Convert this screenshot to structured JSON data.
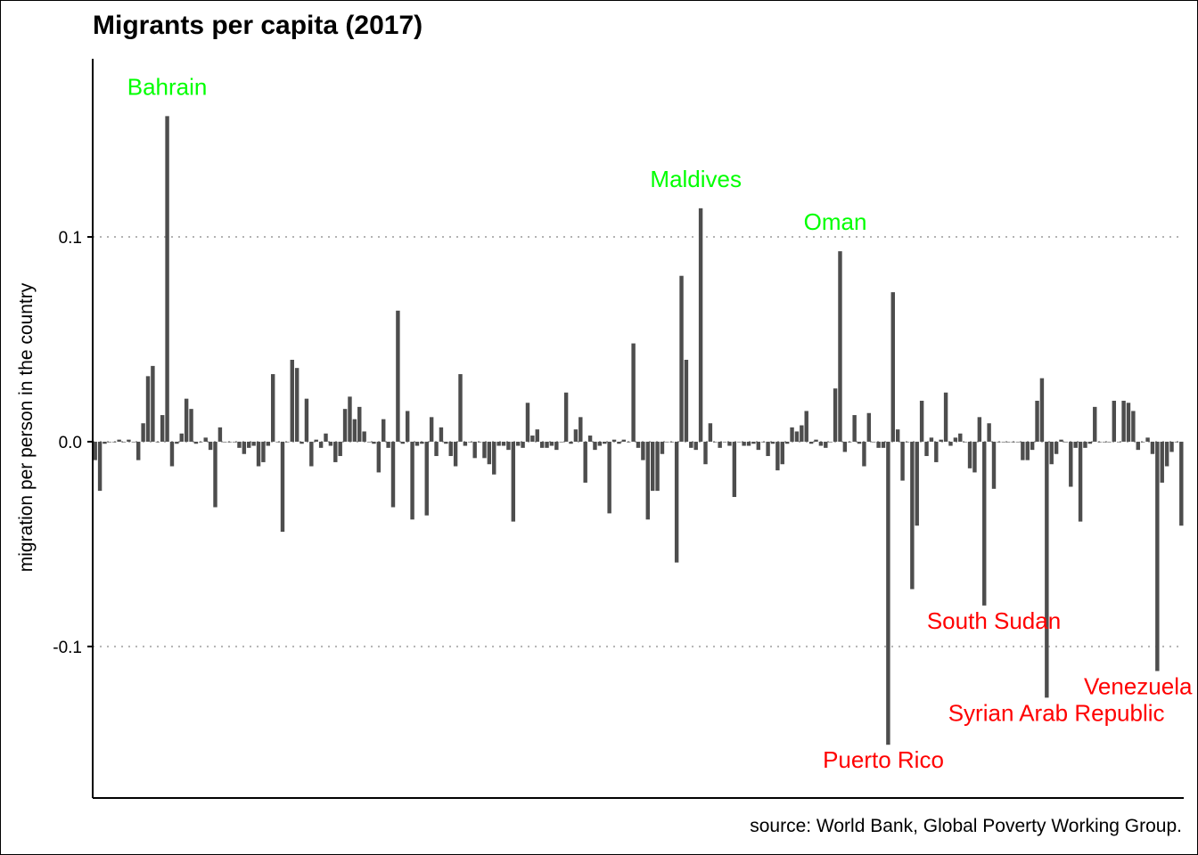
{
  "caption": "source: World Bank, Global Poverty Working Group.",
  "chart_data": {
    "type": "bar",
    "title": "Migrants per capita (2017)",
    "xlabel": "",
    "ylabel": "migration per person in the country",
    "ylim": [
      -0.174,
      0.187
    ],
    "yticks": [
      -0.1,
      0.0,
      0.1
    ],
    "ytick_labels": [
      "-0.1",
      "0.0",
      "0.1"
    ],
    "grid": "horizontal dotted at ticks",
    "bar_color": "#4d4d4d",
    "positive_label_color": "#00ff00",
    "negative_label_color": "#ff0000",
    "categories_shown": "unlabeled country bars",
    "values": [
      -0.009,
      -0.024,
      -0.001,
      0,
      0,
      0.001,
      0,
      0.001,
      0,
      -0.009,
      0.009,
      0.032,
      0.037,
      0,
      0.013,
      0.159,
      -0.012,
      -0.001,
      0.004,
      0.021,
      0.016,
      -0.001,
      0,
      0.002,
      -0.004,
      -0.032,
      0.007,
      0,
      0,
      0,
      -0.003,
      -0.006,
      -0.003,
      -0.002,
      -0.012,
      -0.01,
      -0.002,
      0.033,
      0,
      -0.044,
      0,
      0.04,
      0.036,
      -0.001,
      0.021,
      -0.012,
      0.001,
      -0.003,
      0.004,
      -0.002,
      -0.01,
      -0.007,
      0.016,
      0.022,
      0.011,
      0.017,
      0.005,
      0,
      -0.001,
      -0.015,
      0.011,
      -0.003,
      -0.032,
      0.064,
      -0.001,
      0.015,
      -0.038,
      -0.002,
      -0.001,
      -0.036,
      0.012,
      -0.007,
      0.007,
      -0.001,
      -0.007,
      -0.012,
      0.033,
      -0.002,
      0,
      -0.008,
      0,
      -0.008,
      -0.011,
      -0.016,
      -0.002,
      -0.002,
      -0.004,
      -0.039,
      -0.002,
      -0.003,
      0.019,
      0.003,
      0.006,
      -0.003,
      -0.003,
      -0.002,
      -0.004,
      0,
      0.024,
      -0.001,
      0.006,
      0.012,
      -0.02,
      0.003,
      -0.004,
      -0.002,
      -0.001,
      -0.035,
      0.001,
      -0.001,
      0.001,
      0,
      0.048,
      -0.003,
      -0.009,
      -0.038,
      -0.024,
      -0.024,
      -0.006,
      0,
      0,
      -0.059,
      0.081,
      0.04,
      -0.003,
      -0.004,
      0.114,
      -0.011,
      0.009,
      0,
      -0.003,
      0,
      -0.002,
      -0.027,
      0,
      -0.002,
      -0.002,
      -0.001,
      -0.004,
      0,
      -0.007,
      -0.001,
      -0.014,
      -0.011,
      -0.001,
      0.007,
      0.005,
      0.008,
      0.015,
      -0.001,
      0.001,
      -0.002,
      -0.003,
      0,
      0.026,
      0.093,
      -0.005,
      0,
      0.013,
      -0.001,
      -0.012,
      0.014,
      0,
      -0.003,
      -0.003,
      -0.148,
      0.073,
      0.006,
      -0.019,
      0,
      -0.072,
      -0.041,
      0.02,
      -0.007,
      0.002,
      -0.01,
      0.001,
      0.024,
      -0.002,
      0.002,
      0.004,
      0,
      -0.013,
      -0.015,
      0.012,
      -0.08,
      0.009,
      -0.023,
      0,
      0,
      0,
      0,
      0,
      -0.009,
      -0.009,
      -0.004,
      0.02,
      0.031,
      -0.125,
      -0.011,
      -0.006,
      0.001,
      0,
      -0.022,
      -0.003,
      -0.039,
      -0.003,
      -0.001,
      0.017,
      0,
      0,
      0,
      0.02,
      0,
      0.02,
      0.019,
      0.015,
      -0.004,
      0,
      0.002,
      -0.006,
      -0.112,
      -0.02,
      -0.012,
      -0.005,
      0,
      -0.041
    ],
    "annotations": [
      {
        "label": "Bahrain",
        "index": 15,
        "value": 0.159,
        "side": "positive"
      },
      {
        "label": "Maldives",
        "index": 125,
        "value": 0.114,
        "side": "positive"
      },
      {
        "label": "Oman",
        "index": 154,
        "value": 0.093,
        "side": "positive"
      },
      {
        "label": "Puerto Rico",
        "index": 164,
        "value": -0.148,
        "side": "negative"
      },
      {
        "label": "South Sudan",
        "index": 187,
        "value": -0.08,
        "side": "negative"
      },
      {
        "label": "Syrian Arab Republic",
        "index": 200,
        "value": -0.125,
        "side": "negative"
      },
      {
        "label": "Venezuela",
        "index": 217,
        "value": -0.112,
        "side": "negative"
      }
    ]
  }
}
